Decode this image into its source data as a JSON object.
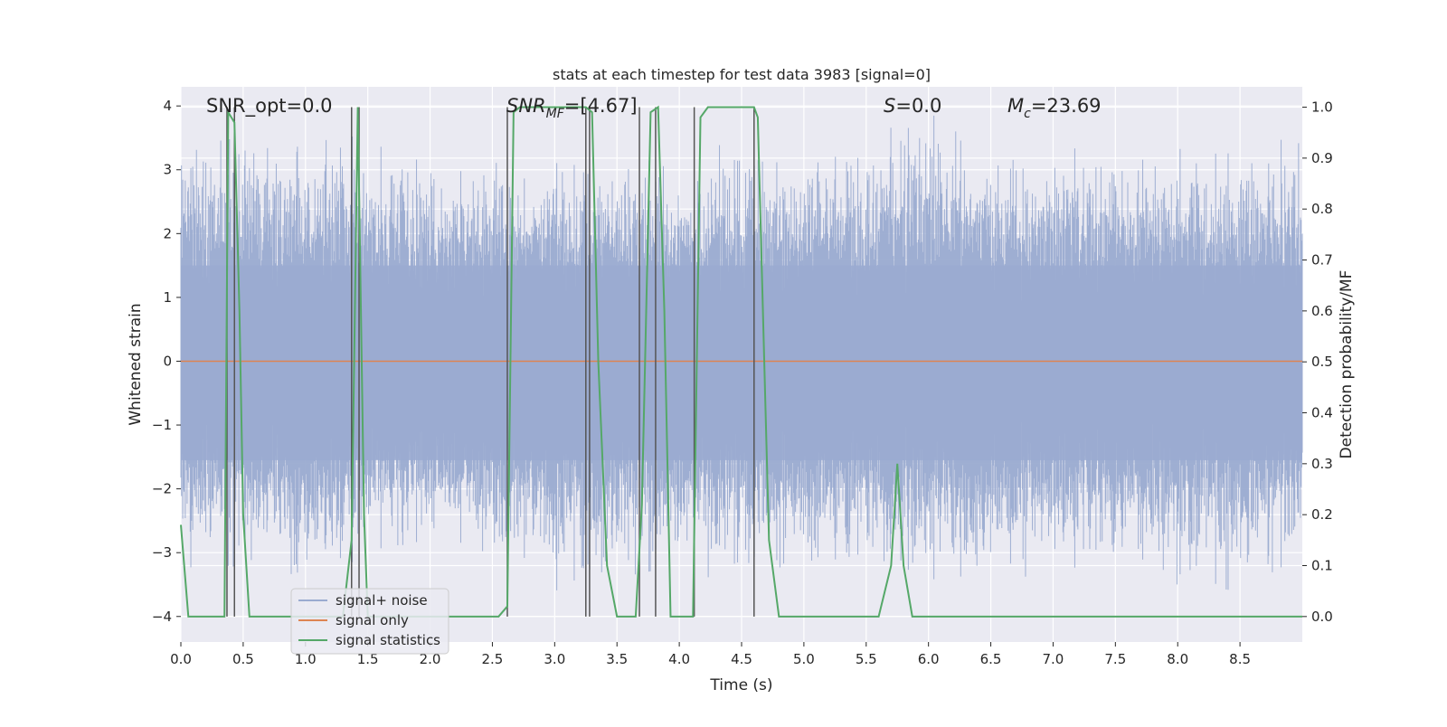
{
  "chart_data": {
    "type": "line",
    "title": "stats at each timestep for test data 3983 [signal=0]",
    "xlabel": "Time (s)",
    "ylabel_left": "Whitened strain",
    "ylabel_right": "Detection probability/MF",
    "xlim": [
      0,
      9
    ],
    "ylim_left": [
      -4.4,
      4.3
    ],
    "ylim_right": [
      -0.05,
      1.04
    ],
    "x_ticks": [
      "0.0",
      "0.5",
      "1.0",
      "1.5",
      "2.0",
      "2.5",
      "3.0",
      "3.5",
      "4.0",
      "4.5",
      "5.0",
      "5.5",
      "6.0",
      "6.5",
      "7.0",
      "7.5",
      "8.0",
      "8.5"
    ],
    "y_ticks_left": [
      "−4",
      "−3",
      "−2",
      "−1",
      "0",
      "1",
      "2",
      "3",
      "4"
    ],
    "y_ticks_right": [
      "0.0",
      "0.1",
      "0.2",
      "0.3",
      "0.4",
      "0.5",
      "0.6",
      "0.7",
      "0.8",
      "0.9",
      "1.0"
    ],
    "grid": true,
    "legend_position": "lower-left",
    "annotations": {
      "snr_opt": "SNR_opt=0.0",
      "snr_mf_main": "SNR",
      "snr_mf_sub": "MF",
      "snr_mf_value": "=[4.67]",
      "s_main": "S",
      "s_value": "=0.0",
      "mc_main": "M",
      "mc_sub": "c",
      "mc_value": "=23.69"
    },
    "series": [
      {
        "name": "signal+ noise",
        "color": "#9aabd0",
        "axis": "left",
        "description_values": "dense whitened strain noise, amplitude roughly within ±4",
        "envelope_x": [
          0.0,
          0.5,
          1.0,
          1.5,
          2.0,
          2.5,
          3.0,
          3.5,
          4.0,
          4.5,
          5.0,
          5.5,
          6.0,
          6.5,
          7.0,
          7.5,
          8.0,
          8.5,
          9.0
        ],
        "envelope_max": [
          3.9,
          3.6,
          3.4,
          3.6,
          3.2,
          3.3,
          3.1,
          3.3,
          3.0,
          3.6,
          3.1,
          3.5,
          3.9,
          3.3,
          3.3,
          3.4,
          3.5,
          3.2,
          3.9
        ],
        "envelope_min": [
          -3.3,
          -3.2,
          -3.4,
          -3.1,
          -2.9,
          -3.3,
          -3.6,
          -3.4,
          -3.2,
          -3.6,
          -3.1,
          -3.3,
          -3.4,
          -3.6,
          -3.2,
          -3.3,
          -3.5,
          -3.6,
          -3.3
        ]
      },
      {
        "name": "signal only",
        "color": "#dd8452",
        "axis": "left",
        "x": [
          0,
          9
        ],
        "y": [
          0,
          0
        ]
      },
      {
        "name": "signal statistics",
        "color": "#55a868",
        "axis": "right",
        "x": [
          0.0,
          0.06,
          0.1,
          0.3,
          0.35,
          0.38,
          0.43,
          0.47,
          0.5,
          0.55,
          1.3,
          1.37,
          1.42,
          1.47,
          1.5,
          1.7,
          2.2,
          2.55,
          2.62,
          2.67,
          2.72,
          3.25,
          3.3,
          3.35,
          3.42,
          3.5,
          3.65,
          3.7,
          3.77,
          3.83,
          3.88,
          3.93,
          4.11,
          4.17,
          4.23,
          4.6,
          4.63,
          4.72,
          4.8,
          5.6,
          5.7,
          5.75,
          5.8,
          5.87,
          6.0,
          9.0
        ],
        "y": [
          0.18,
          0.0,
          0.0,
          0.0,
          0.0,
          0.99,
          0.97,
          0.6,
          0.2,
          0.0,
          0.0,
          0.15,
          1.0,
          0.2,
          0.0,
          0.0,
          0.0,
          0.0,
          0.02,
          0.99,
          1.0,
          1.0,
          0.99,
          0.5,
          0.1,
          0.0,
          0.0,
          0.22,
          0.99,
          1.0,
          0.6,
          0.0,
          0.0,
          0.98,
          1.0,
          1.0,
          0.98,
          0.15,
          0.0,
          0.0,
          0.1,
          0.3,
          0.1,
          0.0,
          0.0,
          0.0
        ]
      }
    ],
    "vertical_lines": {
      "color": "#555555",
      "x": [
        0.37,
        0.43,
        1.37,
        1.43,
        2.62,
        3.25,
        3.28,
        3.68,
        3.81,
        4.12,
        4.6
      ]
    }
  }
}
